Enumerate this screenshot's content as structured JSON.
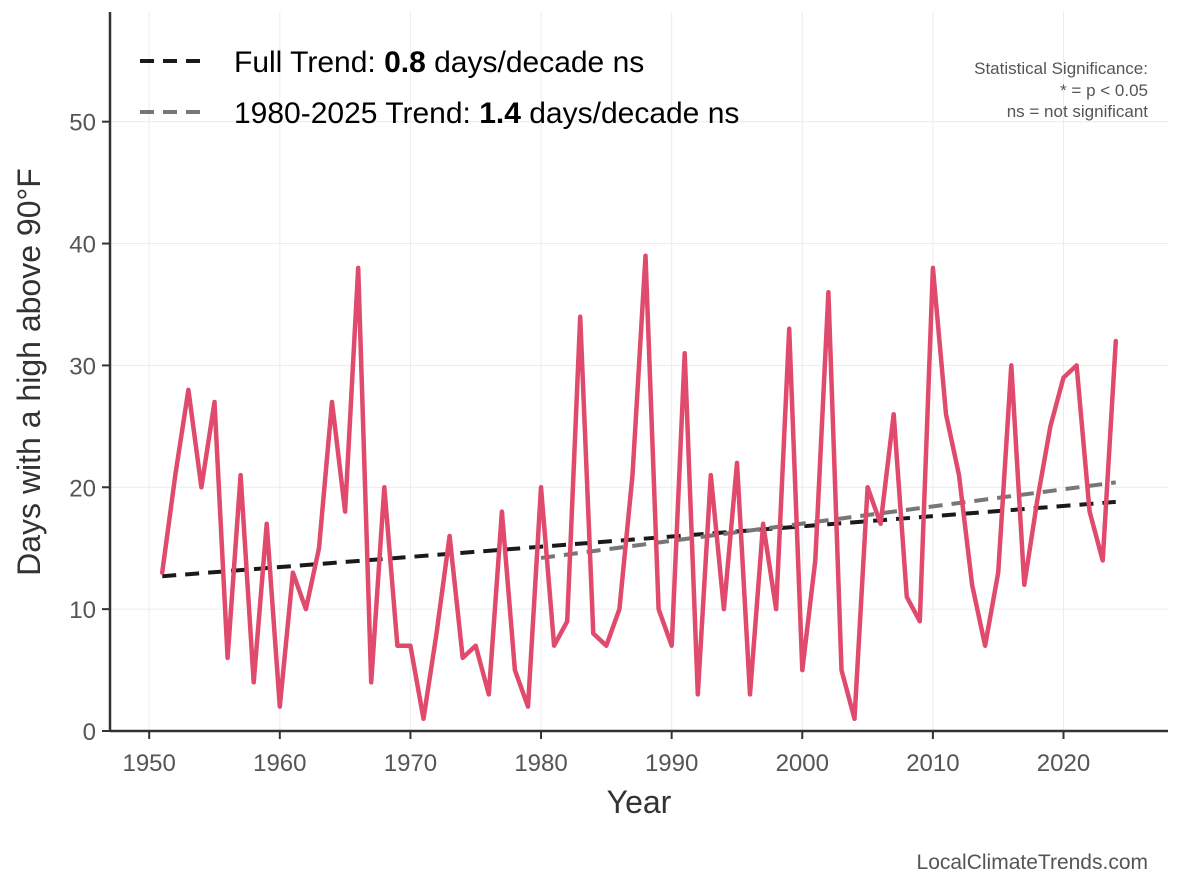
{
  "chart_data": {
    "type": "line",
    "xlabel": "Year",
    "ylabel": "Days with a high above 90°F",
    "xlim": [
      1947,
      2028
    ],
    "ylim": [
      0,
      59
    ],
    "xticks": [
      1950,
      1960,
      1970,
      1980,
      1990,
      2000,
      2010,
      2020
    ],
    "yticks": [
      0,
      10,
      20,
      30,
      40,
      50
    ],
    "grid": true,
    "series": [
      {
        "name": "Days above 90°F",
        "color": "#e04a6c",
        "x": [
          1951,
          1952,
          1953,
          1954,
          1955,
          1956,
          1957,
          1958,
          1959,
          1960,
          1961,
          1962,
          1963,
          1964,
          1965,
          1966,
          1967,
          1968,
          1969,
          1970,
          1971,
          1972,
          1973,
          1974,
          1975,
          1976,
          1977,
          1978,
          1979,
          1980,
          1981,
          1982,
          1983,
          1984,
          1985,
          1986,
          1987,
          1988,
          1989,
          1990,
          1991,
          1992,
          1993,
          1994,
          1995,
          1996,
          1997,
          1998,
          1999,
          2000,
          2001,
          2002,
          2003,
          2004,
          2005,
          2006,
          2007,
          2008,
          2009,
          2010,
          2011,
          2012,
          2013,
          2014,
          2015,
          2016,
          2017,
          2018,
          2019,
          2020,
          2021,
          2022,
          2023,
          2024
        ],
        "values": [
          13,
          21,
          28,
          20,
          27,
          6,
          21,
          4,
          17,
          2,
          13,
          10,
          15,
          27,
          18,
          38,
          4,
          20,
          7,
          7,
          1,
          8,
          16,
          6,
          7,
          3,
          18,
          5,
          2,
          20,
          7,
          9,
          34,
          8,
          7,
          10,
          21,
          39,
          10,
          7,
          31,
          3,
          21,
          10,
          22,
          3,
          17,
          10,
          33,
          5,
          14,
          36,
          5,
          1,
          20,
          17,
          26,
          11,
          9,
          38,
          26,
          21,
          12,
          7,
          13,
          30,
          12,
          19,
          25,
          29,
          30,
          18,
          14,
          32
        ]
      }
    ],
    "trends": [
      {
        "name": "Full Trend",
        "color": "#1a1a1a",
        "x": [
          1951,
          2024
        ],
        "values": [
          12.7,
          18.8
        ],
        "label_prefix": "Full Trend: ",
        "rate": "0.8",
        "label_suffix": " days/decade ns"
      },
      {
        "name": "1980-2025 Trend",
        "color": "#777777",
        "x": [
          1980,
          2024
        ],
        "values": [
          14.2,
          20.4
        ],
        "label_prefix": "1980-2025 Trend: ",
        "rate": "1.4",
        "label_suffix": " days/decade ns"
      }
    ],
    "annotations": {
      "significance_title": "Statistical Significance:",
      "significance_line1": "* = p < 0.05",
      "significance_line2": "ns = not significant"
    },
    "source": "LocalClimateTrends.com"
  }
}
